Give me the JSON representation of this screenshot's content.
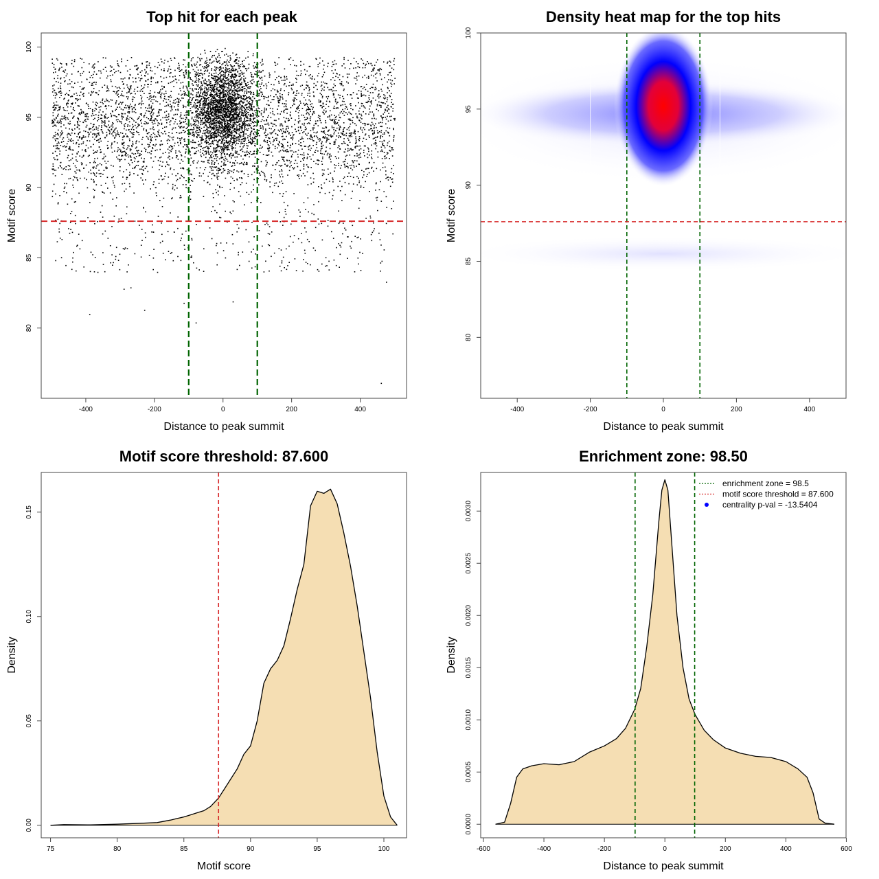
{
  "chart_data": [
    {
      "id": "scatter",
      "type": "scatter",
      "title": "Top hit for each peak",
      "xlabel": "Distance to peak summit",
      "ylabel": "Motif score",
      "xlim": [
        -530,
        535
      ],
      "ylim": [
        75,
        101
      ],
      "xticks": [
        -400,
        -200,
        0,
        200,
        400
      ],
      "yticks": [
        80,
        85,
        90,
        95,
        100
      ],
      "vlines": [
        {
          "x": -100,
          "color": "#006400",
          "style": "dashed"
        },
        {
          "x": 100,
          "color": "#006400",
          "style": "dashed"
        }
      ],
      "hlines": [
        {
          "y": 87.6,
          "color": "#d62728",
          "style": "dashed"
        }
      ],
      "points_summary": {
        "x_range": [
          -500,
          500
        ],
        "y_range": [
          76,
          100
        ],
        "center_x": 0,
        "center_y": 95.5,
        "outliers": [
          [
            -390,
            81.0
          ],
          [
            -290,
            82.8
          ],
          [
            -270,
            82.9
          ],
          [
            -230,
            81.3
          ],
          [
            -115,
            81.8
          ],
          [
            -80,
            80.4
          ],
          [
            28,
            81.9
          ],
          [
            460,
            76.1
          ],
          [
            475,
            83.3
          ]
        ]
      }
    },
    {
      "id": "heatmap",
      "type": "heatmap",
      "title": "Density heat map for the top hits",
      "xlabel": "Distance to peak summit",
      "ylabel": "Motif score",
      "xlim": [
        -500,
        500
      ],
      "ylim": [
        76,
        100
      ],
      "xticks": [
        -400,
        -200,
        0,
        200,
        400
      ],
      "yticks": [
        80,
        85,
        90,
        95,
        100
      ],
      "vlines": [
        {
          "x": -100,
          "color": "#006400",
          "style": "dashed"
        },
        {
          "x": 100,
          "color": "#006400",
          "style": "dashed"
        }
      ],
      "hlines": [
        {
          "y": 87.6,
          "color": "#d62728",
          "style": "dashed"
        }
      ],
      "peak": {
        "x": 0,
        "y": 95.8
      },
      "colors": [
        "#ffffff",
        "#0000ff",
        "#ff0000"
      ]
    },
    {
      "id": "score_density",
      "type": "area",
      "title": "Motif score threshold: 87.600",
      "xlabel": "Motif score",
      "ylabel": "Density",
      "xlim": [
        74.3,
        101.7
      ],
      "ylim": [
        -0.006,
        0.169
      ],
      "xticks": [
        75,
        80,
        85,
        90,
        95,
        100
      ],
      "yticks": [
        0.0,
        0.05,
        0.1,
        0.15
      ],
      "ytick_labels": [
        "0.00",
        "0.05",
        "0.10",
        "0.15"
      ],
      "fill": "#f5deb3",
      "vlines": [
        {
          "x": 87.6,
          "color": "#d62728",
          "style": "dashed"
        }
      ],
      "x": [
        75,
        76,
        78,
        80,
        82,
        83,
        84,
        85,
        85.5,
        86,
        86.5,
        87,
        87.6,
        88,
        88.5,
        89,
        89.5,
        90,
        90.5,
        91,
        91.5,
        92,
        92.5,
        93,
        93.5,
        94,
        94.5,
        95,
        95.5,
        96,
        96.5,
        97,
        97.5,
        98,
        98.5,
        99,
        99.5,
        100,
        100.5,
        101
      ],
      "y": [
        0.0,
        0.0003,
        0.0002,
        0.0005,
        0.001,
        0.0013,
        0.0025,
        0.004,
        0.005,
        0.006,
        0.007,
        0.009,
        0.013,
        0.017,
        0.022,
        0.027,
        0.034,
        0.038,
        0.05,
        0.068,
        0.075,
        0.079,
        0.086,
        0.099,
        0.113,
        0.125,
        0.153,
        0.16,
        0.159,
        0.161,
        0.154,
        0.14,
        0.124,
        0.105,
        0.083,
        0.061,
        0.035,
        0.014,
        0.004,
        0.0
      ]
    },
    {
      "id": "distance_density",
      "type": "area",
      "title": "Enrichment zone: 98.50",
      "xlabel": "Distance to peak summit",
      "ylabel": "Density",
      "xlim": [
        -609,
        599
      ],
      "ylim": [
        -0.00013,
        0.00337
      ],
      "xticks": [
        -600,
        -400,
        -200,
        0,
        200,
        400,
        600
      ],
      "yticks": [
        0.0,
        0.0005,
        0.001,
        0.0015,
        0.002,
        0.0025,
        0.003
      ],
      "ytick_labels": [
        "0.0000",
        "0.0005",
        "0.0010",
        "0.0015",
        "0.0020",
        "0.0025",
        "0.0030"
      ],
      "fill": "#f5deb3",
      "vlines": [
        {
          "x": -98.5,
          "color": "#006400",
          "style": "dashed"
        },
        {
          "x": 98.5,
          "color": "#006400",
          "style": "dashed"
        }
      ],
      "x": [
        -560,
        -530,
        -510,
        -490,
        -470,
        -440,
        -400,
        -350,
        -300,
        -250,
        -200,
        -160,
        -130,
        -100,
        -80,
        -60,
        -40,
        -20,
        -10,
        0,
        10,
        20,
        40,
        60,
        80,
        100,
        130,
        160,
        200,
        250,
        300,
        350,
        400,
        440,
        470,
        490,
        510,
        530,
        560
      ],
      "y": [
        0.0,
        2e-05,
        0.0002,
        0.00045,
        0.00053,
        0.00056,
        0.00058,
        0.00057,
        0.0006,
        0.00069,
        0.00075,
        0.00082,
        0.00092,
        0.0011,
        0.0013,
        0.0017,
        0.0022,
        0.0029,
        0.0032,
        0.0033,
        0.0032,
        0.0028,
        0.002,
        0.0015,
        0.0012,
        0.00105,
        0.0009,
        0.00081,
        0.00073,
        0.00068,
        0.00065,
        0.00064,
        0.0006,
        0.00053,
        0.00045,
        0.0003,
        5e-05,
        1e-05,
        0.0
      ],
      "legend": {
        "position": "top-right",
        "entries": [
          {
            "label": "enrichment zone = 98.5",
            "color": "#006400",
            "style": "dotted"
          },
          {
            "label": "motif score threshold = 87.600",
            "color": "#d62728",
            "style": "dotted"
          },
          {
            "label": "centrality p-val = -13.5404",
            "color": "#0000ff",
            "style": "point"
          }
        ]
      }
    }
  ]
}
